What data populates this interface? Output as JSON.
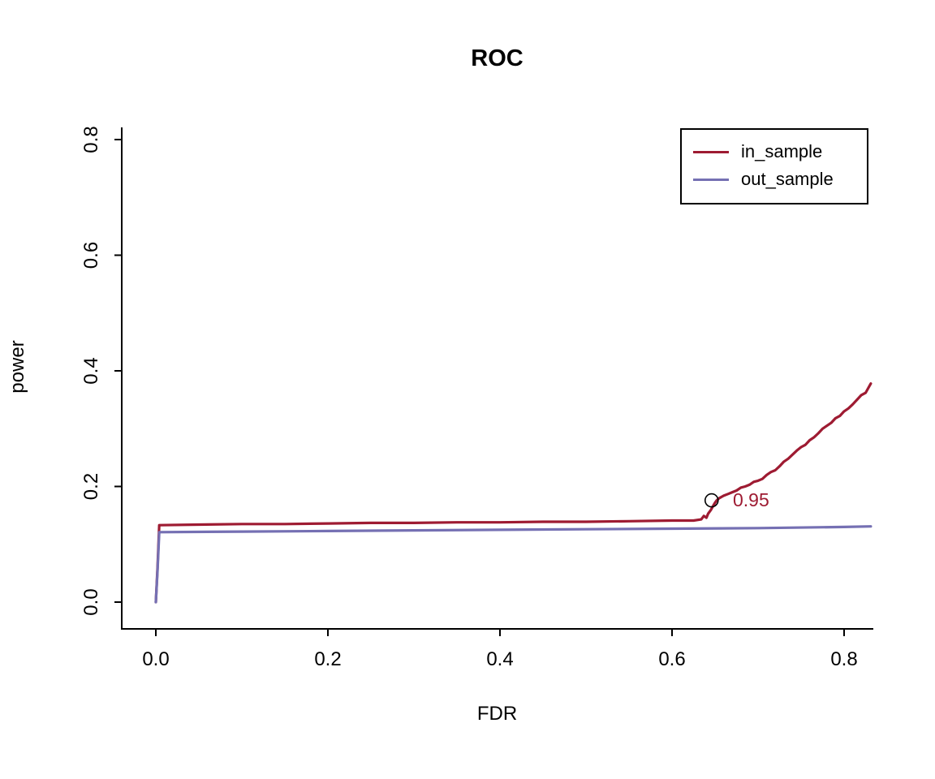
{
  "chart_data": {
    "type": "line",
    "title": "ROC",
    "xlabel": "FDR",
    "ylabel": "power",
    "xlim": [
      -0.04,
      0.833
    ],
    "ylim": [
      -0.046,
      0.82
    ],
    "x_ticks": [
      0.0,
      0.2,
      0.4,
      0.6,
      0.8
    ],
    "y_ticks": [
      0.0,
      0.2,
      0.4,
      0.6,
      0.8
    ],
    "grid": false,
    "legend": {
      "position": "top-right",
      "entries": [
        "in_sample",
        "out_sample"
      ]
    },
    "annotation": {
      "label": "0.95",
      "color": "#9E1B32",
      "x": 0.672,
      "y": 0.175,
      "marker": {
        "type": "open-circle",
        "color": "#000000",
        "x": 0.646,
        "y": 0.176
      }
    },
    "series": [
      {
        "name": "in_sample",
        "color": "#9E1B32",
        "points": [
          [
            0.0,
            0.0
          ],
          [
            0.002,
            0.06
          ],
          [
            0.004,
            0.133
          ],
          [
            0.05,
            0.134
          ],
          [
            0.1,
            0.135
          ],
          [
            0.15,
            0.135
          ],
          [
            0.2,
            0.136
          ],
          [
            0.25,
            0.137
          ],
          [
            0.3,
            0.137
          ],
          [
            0.35,
            0.138
          ],
          [
            0.4,
            0.138
          ],
          [
            0.45,
            0.139
          ],
          [
            0.5,
            0.139
          ],
          [
            0.55,
            0.14
          ],
          [
            0.6,
            0.141
          ],
          [
            0.625,
            0.141
          ],
          [
            0.634,
            0.143
          ],
          [
            0.637,
            0.149
          ],
          [
            0.64,
            0.146
          ],
          [
            0.642,
            0.153
          ],
          [
            0.645,
            0.159
          ],
          [
            0.648,
            0.167
          ],
          [
            0.65,
            0.172
          ],
          [
            0.652,
            0.176
          ],
          [
            0.655,
            0.18
          ],
          [
            0.66,
            0.184
          ],
          [
            0.665,
            0.187
          ],
          [
            0.67,
            0.19
          ],
          [
            0.675,
            0.193
          ],
          [
            0.68,
            0.198
          ],
          [
            0.685,
            0.2
          ],
          [
            0.69,
            0.203
          ],
          [
            0.695,
            0.208
          ],
          [
            0.7,
            0.21
          ],
          [
            0.705,
            0.213
          ],
          [
            0.71,
            0.22
          ],
          [
            0.715,
            0.225
          ],
          [
            0.72,
            0.228
          ],
          [
            0.725,
            0.235
          ],
          [
            0.73,
            0.243
          ],
          [
            0.735,
            0.248
          ],
          [
            0.74,
            0.255
          ],
          [
            0.745,
            0.262
          ],
          [
            0.75,
            0.268
          ],
          [
            0.755,
            0.272
          ],
          [
            0.76,
            0.28
          ],
          [
            0.765,
            0.285
          ],
          [
            0.77,
            0.292
          ],
          [
            0.775,
            0.3
          ],
          [
            0.78,
            0.305
          ],
          [
            0.785,
            0.31
          ],
          [
            0.79,
            0.318
          ],
          [
            0.795,
            0.322
          ],
          [
            0.8,
            0.33
          ],
          [
            0.805,
            0.335
          ],
          [
            0.81,
            0.342
          ],
          [
            0.815,
            0.35
          ],
          [
            0.82,
            0.358
          ],
          [
            0.825,
            0.362
          ],
          [
            0.828,
            0.37
          ],
          [
            0.831,
            0.378
          ]
        ]
      },
      {
        "name": "out_sample",
        "color": "#7570B3",
        "points": [
          [
            0.0,
            0.0
          ],
          [
            0.002,
            0.055
          ],
          [
            0.004,
            0.121
          ],
          [
            0.1,
            0.122
          ],
          [
            0.2,
            0.123
          ],
          [
            0.3,
            0.124
          ],
          [
            0.4,
            0.125
          ],
          [
            0.5,
            0.126
          ],
          [
            0.6,
            0.127
          ],
          [
            0.7,
            0.128
          ],
          [
            0.8,
            0.13
          ],
          [
            0.831,
            0.131
          ]
        ]
      }
    ]
  }
}
